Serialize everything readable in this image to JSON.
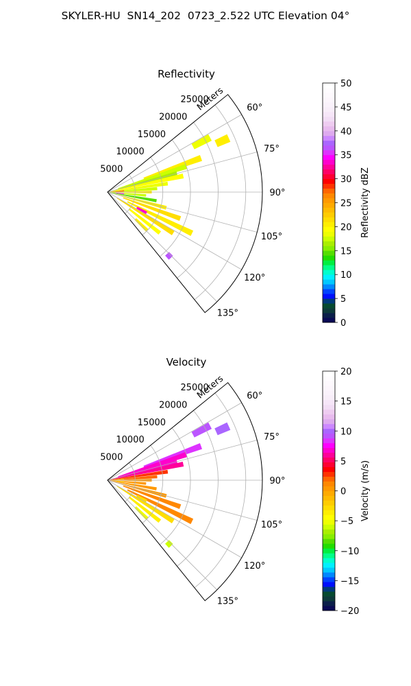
{
  "figure": {
    "suptitle": "SKYLER-HU  SN14_202  0723_2.522 UTC Elevation 04°"
  },
  "chart_data": [
    {
      "type": "polar-sector-heatmap",
      "title": "Reflectivity",
      "radial_label": "Meters",
      "theta_range_deg": [
        51,
        141
      ],
      "theta_ticks": [
        "60°",
        "75°",
        "90°",
        "105°",
        "120°",
        "135°"
      ],
      "theta_tick_values": [
        60,
        75,
        90,
        105,
        120,
        135
      ],
      "r_range": [
        0,
        28000
      ],
      "r_ticks": [
        5000,
        10000,
        15000,
        20000,
        25000
      ],
      "r_tick_labels": [
        "5000",
        "10000",
        "15000",
        "20000",
        "25000"
      ],
      "grid": true,
      "colorbar": {
        "label": "Reflectivity dBZ",
        "range": [
          0,
          50
        ],
        "ticks": [
          "0",
          "5",
          "10",
          "15",
          "20",
          "25",
          "30",
          "35",
          "40",
          "45",
          "50"
        ],
        "colors": [
          "#0a0a55",
          "#0b1f4a",
          "#0d3a3a",
          "#064a30",
          "#003a7a",
          "#0010ff",
          "#0044ff",
          "#0088ff",
          "#00c8ff",
          "#00f0ff",
          "#00ffcc",
          "#00ff88",
          "#00ee40",
          "#22dd00",
          "#55dd00",
          "#88ee00",
          "#aaee00",
          "#ccff00",
          "#eeff00",
          "#ffff00",
          "#ffee00",
          "#ffdd00",
          "#ffcc00",
          "#ffbb00",
          "#ffaa00",
          "#ff9900",
          "#ff8800",
          "#ff6600",
          "#ff3300",
          "#ff0000",
          "#ff0033",
          "#ff0066",
          "#ff0099",
          "#ff00cc",
          "#ff00ff",
          "#dd33ff",
          "#bb55ff",
          "#aa66ff",
          "#cc88ff",
          "#ddaaee",
          "#e8bbee",
          "#eeccf0",
          "#f2ddf5",
          "#f6e6f8",
          "#f8eef9",
          "#faf2fb",
          "#fcf6fc",
          "#fdf9fd",
          "#fefcfe",
          "#ffffff"
        ]
      },
      "echoes": [
        {
          "az": 62,
          "r0": 17500,
          "r1": 21000,
          "value": 18
        },
        {
          "az": 66,
          "r0": 21500,
          "r1": 24000,
          "value": 20
        },
        {
          "az": 70,
          "r0": 7000,
          "r1": 18000,
          "value": 20
        },
        {
          "az": 72,
          "r0": 2000,
          "r1": 15000,
          "value": 17
        },
        {
          "az": 75,
          "r0": 1500,
          "r1": 13000,
          "value": 16
        },
        {
          "az": 78,
          "r0": 0,
          "r1": 14000,
          "value": 19
        },
        {
          "az": 82,
          "r0": 0,
          "r1": 11000,
          "value": 18
        },
        {
          "az": 86,
          "r0": 0,
          "r1": 9000,
          "value": 17
        },
        {
          "az": 90,
          "r0": 0,
          "r1": 8000,
          "value": 20
        },
        {
          "az": 95,
          "r0": 0,
          "r1": 7000,
          "value": 17
        },
        {
          "az": 100,
          "r0": 0,
          "r1": 9000,
          "value": 14
        },
        {
          "az": 105,
          "r0": 0,
          "r1": 11000,
          "value": 20
        },
        {
          "az": 110,
          "r0": 3000,
          "r1": 14000,
          "value": 21
        },
        {
          "az": 116,
          "r0": 4000,
          "r1": 17000,
          "value": 20
        },
        {
          "az": 122,
          "r0": 2000,
          "r1": 14000,
          "value": 21
        },
        {
          "az": 128,
          "r0": 5000,
          "r1": 12000,
          "value": 19
        },
        {
          "az": 134,
          "r0": 7000,
          "r1": 10000,
          "value": 20
        },
        {
          "az": 86,
          "r0": 500,
          "r1": 3000,
          "value": 27
        },
        {
          "az": 96,
          "r0": 1500,
          "r1": 3000,
          "value": 35
        },
        {
          "az": 118,
          "r0": 6000,
          "r1": 8000,
          "value": 33
        },
        {
          "az": 136,
          "r0": 15500,
          "r1": 16500,
          "value": 36
        }
      ]
    },
    {
      "type": "polar-sector-heatmap",
      "title": "Velocity",
      "radial_label": "Meters",
      "theta_range_deg": [
        51,
        141
      ],
      "theta_ticks": [
        "60°",
        "75°",
        "90°",
        "105°",
        "120°",
        "135°"
      ],
      "theta_tick_values": [
        60,
        75,
        90,
        105,
        120,
        135
      ],
      "r_range": [
        0,
        28000
      ],
      "r_ticks": [
        5000,
        10000,
        15000,
        20000,
        25000
      ],
      "r_tick_labels": [
        "5000",
        "10000",
        "15000",
        "20000",
        "25000"
      ],
      "grid": true,
      "colorbar": {
        "label": "Velocity (m/s)",
        "range": [
          -20,
          20
        ],
        "ticks": [
          "−20",
          "−15",
          "−10",
          "−5",
          "0",
          "5",
          "10",
          "15",
          "20"
        ],
        "colors": [
          "#0a0a55",
          "#0b1f4a",
          "#0d3a3a",
          "#064a30",
          "#003a7a",
          "#0010ff",
          "#0044ff",
          "#0088ff",
          "#00c8ff",
          "#00f0ff",
          "#00ffcc",
          "#00ff88",
          "#00ee40",
          "#22dd00",
          "#55dd00",
          "#88ee00",
          "#aaee00",
          "#ccff00",
          "#eeff00",
          "#ffff00",
          "#ffee00",
          "#ffdd00",
          "#ffcc00",
          "#ffbb00",
          "#ffaa00",
          "#ff9900",
          "#ff8800",
          "#ff6600",
          "#ff3300",
          "#ff0000",
          "#ff0033",
          "#ff0066",
          "#ff0099",
          "#ff00cc",
          "#ff00ff",
          "#dd33ff",
          "#bb55ff",
          "#aa66ff",
          "#cc88ff",
          "#ddaaee",
          "#e8bbee",
          "#eeccf0",
          "#f2ddf5",
          "#f6e6f8",
          "#f8eef9",
          "#faf2fb",
          "#fcf6fc",
          "#fdf9fd",
          "#fefcfe",
          "#ffffff"
        ]
      },
      "echoes": [
        {
          "az": 62,
          "r0": 17500,
          "r1": 21000,
          "value": 9
        },
        {
          "az": 66,
          "r0": 21500,
          "r1": 24000,
          "value": 10
        },
        {
          "az": 70,
          "r0": 7000,
          "r1": 18000,
          "value": 8
        },
        {
          "az": 72,
          "r0": 2000,
          "r1": 15000,
          "value": 7
        },
        {
          "az": 75,
          "r0": 1500,
          "r1": 13000,
          "value": 7
        },
        {
          "az": 78,
          "r0": 0,
          "r1": 14000,
          "value": 6
        },
        {
          "az": 82,
          "r0": 0,
          "r1": 11000,
          "value": 3
        },
        {
          "az": 86,
          "r0": 0,
          "r1": 9000,
          "value": 2
        },
        {
          "az": 90,
          "r0": 0,
          "r1": 8000,
          "value": 0
        },
        {
          "az": 95,
          "r0": 0,
          "r1": 7000,
          "value": 0
        },
        {
          "az": 100,
          "r0": 0,
          "r1": 9000,
          "value": 0
        },
        {
          "az": 105,
          "r0": 0,
          "r1": 11000,
          "value": 0
        },
        {
          "az": 110,
          "r0": 3000,
          "r1": 14000,
          "value": 1
        },
        {
          "az": 116,
          "r0": 4000,
          "r1": 17000,
          "value": 1
        },
        {
          "az": 122,
          "r0": 2000,
          "r1": 14000,
          "value": -3
        },
        {
          "az": 128,
          "r0": 5000,
          "r1": 12000,
          "value": -4
        },
        {
          "az": 134,
          "r0": 7000,
          "r1": 10000,
          "value": -5
        },
        {
          "az": 86,
          "r0": 500,
          "r1": 3000,
          "value": -1
        },
        {
          "az": 96,
          "r0": 1500,
          "r1": 3000,
          "value": -2
        },
        {
          "az": 118,
          "r0": 6000,
          "r1": 8000,
          "value": -3
        },
        {
          "az": 136,
          "r0": 15500,
          "r1": 16500,
          "value": -6
        }
      ]
    }
  ]
}
